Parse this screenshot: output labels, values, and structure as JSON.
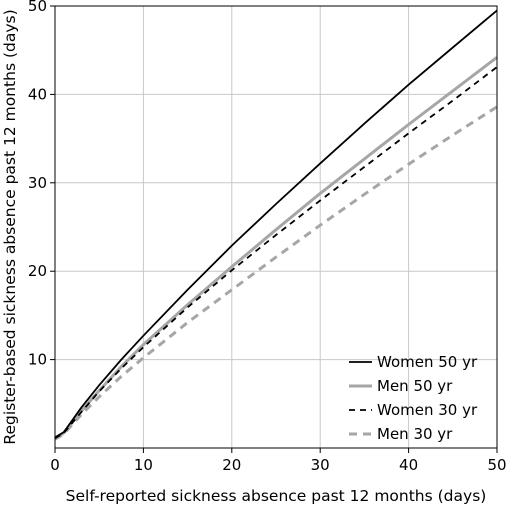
{
  "chart_data": {
    "type": "line",
    "title": "",
    "xlabel": "Self-reported sickness absence past 12 months (days)",
    "ylabel": "Register-based sickness absence past 12 months (days)",
    "xlim": [
      0,
      50
    ],
    "ylim": [
      0,
      50
    ],
    "xticks": [
      0,
      10,
      20,
      30,
      40,
      50
    ],
    "yticks": [
      10,
      20,
      30,
      40,
      50
    ],
    "grid": true,
    "legend_position": "bottom-right",
    "series": [
      {
        "name": "Women 50 yr",
        "color": "#000000",
        "style": "solid",
        "x": [
          0,
          1,
          2,
          3,
          5,
          7.5,
          10,
          15,
          20,
          25,
          30,
          35,
          40,
          45,
          50
        ],
        "y": [
          1.2,
          1.8,
          3.2,
          4.6,
          7.1,
          10.0,
          12.7,
          17.9,
          22.9,
          27.6,
          32.2,
          36.7,
          41.1,
          45.3,
          49.5
        ]
      },
      {
        "name": "Men 50 yr",
        "color": "#a6a6a6",
        "style": "solid",
        "x": [
          0,
          1,
          2,
          3,
          5,
          7.5,
          10,
          15,
          20,
          25,
          30,
          35,
          40,
          45,
          50
        ],
        "y": [
          1.1,
          1.7,
          3.0,
          4.2,
          6.5,
          9.2,
          11.7,
          16.2,
          20.5,
          24.7,
          28.8,
          32.7,
          36.6,
          40.4,
          44.2
        ]
      },
      {
        "name": "Women 30 yr",
        "color": "#000000",
        "style": "dashed",
        "x": [
          0,
          1,
          2,
          3,
          5,
          7.5,
          10,
          15,
          20,
          25,
          30,
          35,
          40,
          45,
          50
        ],
        "y": [
          1.1,
          1.7,
          2.9,
          4.1,
          6.4,
          9.0,
          11.4,
          15.9,
          20.1,
          24.1,
          28.0,
          31.8,
          35.6,
          39.3,
          43.1
        ]
      },
      {
        "name": "Men 30 yr",
        "color": "#a6a6a6",
        "style": "dashed",
        "x": [
          0,
          1,
          2,
          3,
          5,
          7.5,
          10,
          15,
          20,
          25,
          30,
          35,
          40,
          45,
          50
        ],
        "y": [
          1.0,
          1.6,
          2.7,
          3.8,
          5.8,
          8.1,
          10.2,
          14.2,
          17.9,
          21.6,
          25.2,
          28.7,
          32.1,
          35.4,
          38.6
        ]
      }
    ]
  }
}
